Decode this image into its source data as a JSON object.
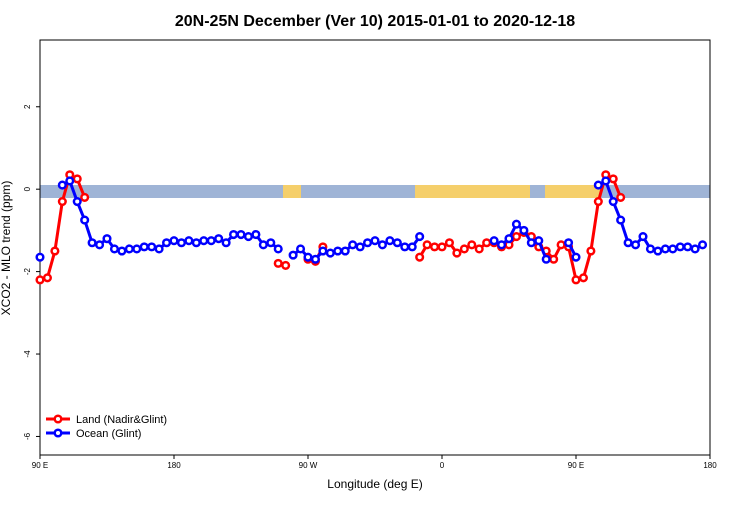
{
  "chart_data": {
    "type": "line",
    "title": "20N-25N December (Ver 10)   2015-01-01 to 2020-12-18",
    "x_label": "Longitude (deg E)",
    "y_label": "XCO2 - MLO trend (ppm)",
    "x": [
      90,
      95,
      100,
      105,
      110,
      115,
      120,
      125,
      130,
      135,
      140,
      145,
      150,
      155,
      160,
      165,
      170,
      175,
      180,
      185,
      190,
      195,
      200,
      205,
      210,
      215,
      220,
      225,
      230,
      235,
      240,
      245,
      250,
      255,
      260,
      265,
      270,
      275,
      280,
      285,
      290,
      295,
      300,
      305,
      310,
      315,
      320,
      325,
      330,
      335,
      340,
      345,
      350,
      355,
      360,
      365,
      370,
      375,
      380,
      385,
      390,
      395,
      400,
      405,
      410,
      415,
      420,
      425,
      430,
      435,
      440,
      445,
      450,
      455,
      460,
      465,
      470,
      475,
      480,
      485,
      490,
      495,
      500,
      505,
      510,
      515,
      520,
      525,
      530,
      535,
      540
    ],
    "xlim": [
      90,
      540
    ],
    "xticks": [
      {
        "value": 90,
        "label": "90 E"
      },
      {
        "value": 180,
        "label": "180"
      },
      {
        "value": 270,
        "label": "90 W"
      },
      {
        "value": 360,
        "label": "0"
      },
      {
        "value": 450,
        "label": "90 E"
      },
      {
        "value": 540,
        "label": "180"
      }
    ],
    "ylim": [
      -6.45,
      3.62
    ],
    "yticks": [
      -6,
      -4,
      -2,
      0,
      2
    ],
    "legend": "bottom-left",
    "series": [
      {
        "name": "Land (Nadir&Glint)",
        "color": "#ff0000",
        "values": [
          -2.2,
          -2.15,
          -1.5,
          -0.3,
          0.35,
          0.25,
          -0.2,
          null,
          null,
          null,
          null,
          null,
          null,
          null,
          null,
          null,
          null,
          null,
          null,
          null,
          null,
          null,
          null,
          null,
          null,
          null,
          null,
          null,
          null,
          null,
          null,
          null,
          -1.8,
          -1.85,
          null,
          null,
          -1.7,
          -1.75,
          -1.4,
          null,
          null,
          null,
          null,
          null,
          null,
          null,
          null,
          null,
          null,
          null,
          null,
          -1.65,
          -1.35,
          -1.4,
          -1.4,
          -1.3,
          -1.55,
          -1.45,
          -1.35,
          -1.45,
          -1.3,
          -1.3,
          -1.4,
          -1.35,
          -1.15,
          -1.05,
          -1.15,
          -1.4,
          -1.5,
          -1.7,
          -1.35,
          -1.4,
          -2.2,
          -2.15,
          -1.5,
          -0.3,
          0.35,
          0.25,
          -0.2,
          null,
          null,
          null,
          null,
          null,
          null,
          null,
          null,
          null,
          null,
          null,
          null
        ]
      },
      {
        "name": "Ocean (Glint)",
        "color": "#0000ff",
        "values": [
          -1.65,
          null,
          null,
          0.1,
          0.2,
          -0.3,
          -0.75,
          -1.3,
          -1.35,
          -1.2,
          -1.45,
          -1.5,
          -1.45,
          -1.45,
          -1.4,
          -1.4,
          -1.45,
          -1.3,
          -1.25,
          -1.3,
          -1.25,
          -1.3,
          -1.25,
          -1.25,
          -1.2,
          -1.3,
          -1.1,
          -1.1,
          -1.15,
          -1.1,
          -1.35,
          -1.3,
          -1.45,
          null,
          -1.6,
          -1.45,
          -1.65,
          -1.7,
          -1.5,
          -1.55,
          -1.5,
          -1.5,
          -1.35,
          -1.4,
          -1.3,
          -1.25,
          -1.35,
          -1.25,
          -1.3,
          -1.4,
          -1.4,
          -1.15,
          null,
          null,
          null,
          null,
          null,
          null,
          null,
          null,
          null,
          -1.25,
          -1.35,
          -1.2,
          -0.85,
          -1.0,
          -1.3,
          -1.25,
          -1.7,
          null,
          null,
          -1.3,
          -1.65,
          null,
          null,
          0.1,
          0.2,
          -0.3,
          -0.75,
          -1.3,
          -1.35,
          -1.15,
          -1.45,
          -1.5,
          -1.45,
          -1.45,
          -1.4,
          -1.4,
          -1.45,
          -1.35,
          null
        ]
      }
    ]
  }
}
